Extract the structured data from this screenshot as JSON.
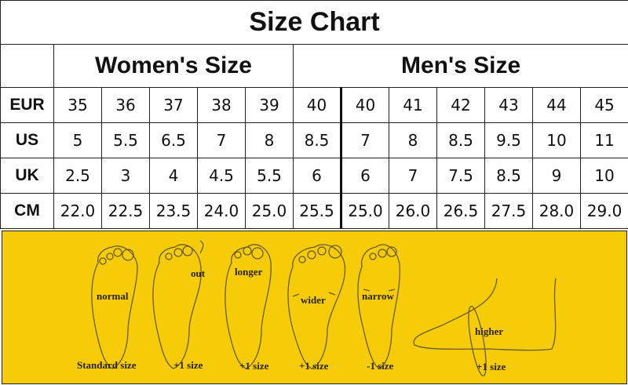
{
  "title": "Size Chart",
  "groups": {
    "women": "Women's Size",
    "men": "Men's Size"
  },
  "rows": [
    {
      "label": "EUR",
      "values": [
        "35",
        "36",
        "37",
        "38",
        "39",
        "40",
        "40",
        "41",
        "42",
        "43",
        "44",
        "45"
      ]
    },
    {
      "label": "US",
      "values": [
        "5",
        "5.5",
        "6.5",
        "7",
        "8",
        "8.5",
        "7",
        "8",
        "8.5",
        "9.5",
        "10",
        "11"
      ]
    },
    {
      "label": "UK",
      "values": [
        "2.5",
        "3",
        "4",
        "4.5",
        "5.5",
        "6",
        "6",
        "7",
        "7.5",
        "8.5",
        "9",
        "10"
      ]
    },
    {
      "label": "CM",
      "values": [
        "22.0",
        "22.5",
        "23.5",
        "24.0",
        "25.0",
        "25.5",
        "25.0",
        "26.0",
        "26.5",
        "27.5",
        "28.0",
        "29.0"
      ]
    }
  ],
  "feet": [
    {
      "shape": "normal",
      "size": "Standard size"
    },
    {
      "shape": "out",
      "size": "+1 size"
    },
    {
      "shape": "longer",
      "size": "+1 size"
    },
    {
      "shape": "wider",
      "size": "+1 size"
    },
    {
      "shape": "narrow",
      "size": "-1 size"
    },
    {
      "shape": "higher",
      "size": "+1 size"
    }
  ],
  "colors": {
    "panel": "#f6cc08",
    "outline": "#6b5a2a"
  }
}
